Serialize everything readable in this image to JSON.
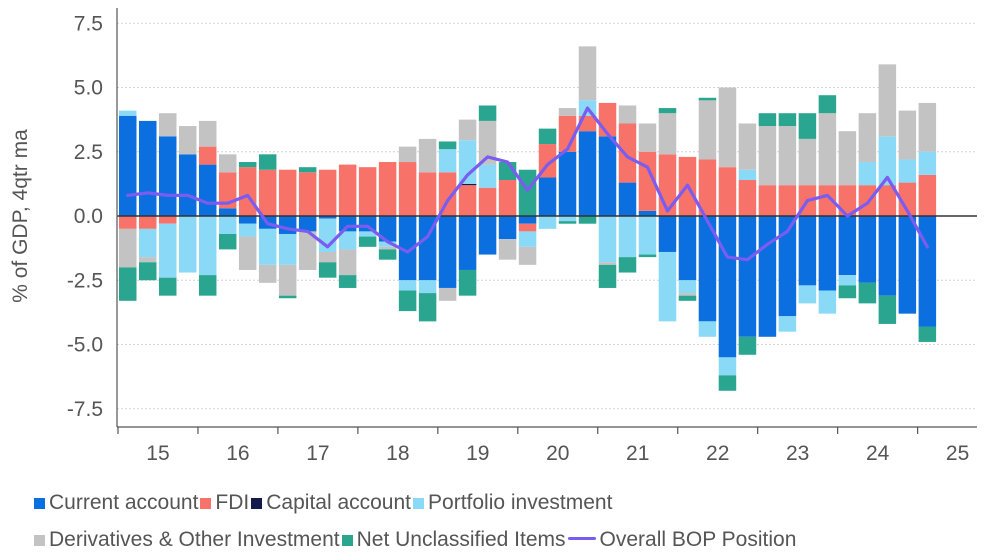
{
  "chart_data": {
    "type": "bar",
    "ylabel": "% of GDP, 4qtr ma",
    "ylim": [
      -8.5,
      8.0
    ],
    "yticks": [
      7.5,
      5.0,
      2.5,
      0.0,
      -2.5,
      -5.0,
      -7.5
    ],
    "ytick_labels": [
      "7.5",
      "5.0",
      "2.5",
      "0.0",
      "-2.5",
      "-5.0",
      "-7.5"
    ],
    "xtick_labels": [
      "15",
      "16",
      "17",
      "18",
      "19",
      "20",
      "21",
      "22",
      "23",
      "24",
      "25"
    ],
    "x_periods": [
      "15Q1",
      "15Q2",
      "15Q3",
      "15Q4",
      "16Q1",
      "16Q2",
      "16Q3",
      "16Q4",
      "17Q1",
      "17Q2",
      "17Q3",
      "17Q4",
      "18Q1",
      "18Q2",
      "18Q3",
      "18Q4",
      "19Q1",
      "19Q2",
      "19Q3",
      "19Q4",
      "20Q1",
      "20Q2",
      "20Q3",
      "20Q4",
      "21Q1",
      "21Q2",
      "21Q3",
      "21Q4",
      "22Q1",
      "22Q2",
      "22Q3",
      "22Q4",
      "23Q1",
      "23Q2",
      "23Q3",
      "23Q4",
      "24Q1",
      "24Q2",
      "24Q3",
      "24Q4",
      "25Q1"
    ],
    "grid": true,
    "legend_position": "bottom",
    "stacked": true,
    "series": [
      {
        "name": "Current account",
        "color": "#0b6fe0",
        "values": [
          3.9,
          3.7,
          3.1,
          2.4,
          2.0,
          0.3,
          -0.3,
          -0.5,
          -0.7,
          -0.6,
          -0.1,
          -0.6,
          -0.6,
          -1.0,
          -2.5,
          -2.5,
          -2.8,
          -2.1,
          -1.5,
          -0.9,
          -0.3,
          1.5,
          2.5,
          3.3,
          3.1,
          1.3,
          0.2,
          -1.4,
          -2.5,
          -4.1,
          -5.5,
          -4.7,
          -4.7,
          -3.9,
          -2.7,
          -2.9,
          -2.3,
          -2.6,
          -3.1,
          -3.8,
          -4.3
        ]
      },
      {
        "name": "FDI",
        "color": "#f7736a",
        "values": [
          -0.5,
          -0.5,
          -0.3,
          0.0,
          0.7,
          1.4,
          1.9,
          1.8,
          1.8,
          1.7,
          1.8,
          2.0,
          1.9,
          2.1,
          2.1,
          1.7,
          1.7,
          1.2,
          1.1,
          1.4,
          -0.3,
          1.3,
          1.4,
          0.6,
          1.3,
          2.3,
          2.3,
          2.4,
          2.3,
          2.2,
          1.9,
          1.4,
          1.2,
          1.2,
          1.2,
          1.2,
          1.2,
          1.2,
          1.2,
          1.3,
          1.6
        ]
      },
      {
        "name": "Capital account",
        "color": "#141a4a",
        "values": [
          0,
          0,
          0,
          0,
          0,
          0,
          0,
          0,
          0,
          0,
          0,
          0,
          0,
          0,
          0,
          0,
          0,
          0.05,
          0,
          0,
          0,
          0,
          0,
          0,
          0,
          0,
          0,
          0,
          0,
          0,
          0,
          0,
          0,
          0,
          0,
          0,
          0,
          0,
          0,
          0,
          0
        ]
      },
      {
        "name": "Portfolio investment",
        "color": "#89d9f7",
        "values": [
          0.2,
          -1.1,
          -2.1,
          -2.2,
          -2.3,
          -0.7,
          -0.5,
          -1.4,
          -1.2,
          0.0,
          -1.3,
          -0.7,
          -0.2,
          -0.2,
          -0.4,
          -0.5,
          0.9,
          1.7,
          0.9,
          0.0,
          -0.6,
          -0.5,
          -0.2,
          0.6,
          -1.8,
          -1.6,
          -1.5,
          -2.7,
          -0.5,
          -0.6,
          -0.7,
          0.4,
          0.0,
          -0.6,
          -0.7,
          -0.9,
          -0.4,
          0.9,
          1.9,
          0.9,
          0.9
        ]
      },
      {
        "name": "Derivatives & Other Investment",
        "color": "#c3c3c3",
        "values": [
          -1.5,
          -0.2,
          0.9,
          1.1,
          1.0,
          0.7,
          -1.3,
          -0.7,
          -1.2,
          -1.5,
          -0.4,
          -1.0,
          0.0,
          -0.1,
          0.6,
          1.3,
          -0.5,
          0.8,
          1.7,
          -0.8,
          -0.7,
          0.0,
          0.3,
          2.1,
          -0.1,
          0.7,
          1.1,
          1.6,
          -0.1,
          2.3,
          3.1,
          1.8,
          2.3,
          2.3,
          1.8,
          2.8,
          2.1,
          1.9,
          2.8,
          1.9,
          1.9
        ]
      },
      {
        "name": "Net Unclassified Items",
        "color": "#2aa690",
        "values": [
          -1.3,
          -0.7,
          -0.7,
          0.0,
          -0.8,
          -0.6,
          0.2,
          0.6,
          -0.1,
          0.2,
          -0.6,
          -0.5,
          -0.4,
          -0.4,
          -0.8,
          -1.1,
          0.3,
          -1.0,
          0.6,
          0.7,
          1.8,
          0.6,
          -0.1,
          -0.3,
          -0.9,
          -0.6,
          -0.1,
          0.2,
          -0.2,
          0.1,
          -0.6,
          -0.7,
          0.5,
          0.5,
          1.0,
          0.7,
          -0.5,
          -0.8,
          -1.1,
          0.0,
          -0.6
        ]
      },
      {
        "name": "Overall BOP Position",
        "color": "#7b5cf0",
        "kind": "line",
        "values": [
          0.8,
          0.9,
          0.8,
          0.8,
          0.5,
          0.5,
          0.8,
          -0.3,
          -0.5,
          -0.6,
          -1.2,
          -0.4,
          -0.4,
          -1.0,
          -1.4,
          -0.8,
          0.6,
          1.6,
          2.3,
          2.1,
          1.0,
          2.0,
          2.6,
          4.2,
          3.2,
          2.3,
          1.9,
          0.2,
          1.2,
          -0.2,
          -1.6,
          -1.7,
          -1.1,
          -0.6,
          0.6,
          0.8,
          0.0,
          0.5,
          1.5,
          0.2,
          -1.2
        ]
      }
    ]
  }
}
